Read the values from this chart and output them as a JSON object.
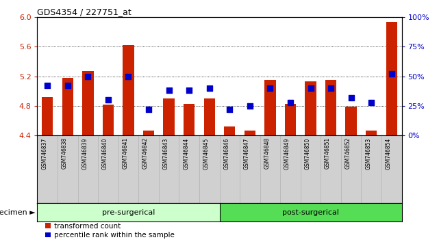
{
  "title": "GDS4354 / 227751_at",
  "samples": [
    "GSM746837",
    "GSM746838",
    "GSM746839",
    "GSM746840",
    "GSM746841",
    "GSM746842",
    "GSM746843",
    "GSM746844",
    "GSM746845",
    "GSM746846",
    "GSM746847",
    "GSM746848",
    "GSM746849",
    "GSM746850",
    "GSM746851",
    "GSM746852",
    "GSM746853",
    "GSM746854"
  ],
  "transformed_count": [
    4.92,
    5.18,
    5.27,
    4.82,
    5.62,
    4.47,
    4.9,
    4.83,
    4.9,
    4.52,
    4.47,
    5.15,
    4.83,
    5.13,
    5.15,
    4.79,
    4.47,
    5.93
  ],
  "percentile_rank": [
    42,
    42,
    50,
    30,
    50,
    22,
    38,
    38,
    40,
    22,
    25,
    40,
    28,
    40,
    40,
    32,
    28,
    52
  ],
  "pre_surgical_count": 9,
  "post_surgical_count": 9,
  "ylim_left": [
    4.4,
    6.0
  ],
  "ylim_right": [
    0,
    100
  ],
  "yticks_left": [
    4.4,
    4.8,
    5.2,
    5.6,
    6.0
  ],
  "yticks_right": [
    0,
    25,
    50,
    75,
    100
  ],
  "bar_color": "#cc2200",
  "dot_color": "#0000cc",
  "pre_color_light": "#ccffcc",
  "post_color": "#55dd55",
  "grid_color": "#000000",
  "tick_color_left": "#cc2200",
  "tick_color_right": "#0000cc",
  "specimen_label": "specimen",
  "pre_label": "pre-surgerical",
  "post_label": "post-surgerical",
  "legend_red": "transformed count",
  "legend_blue": "percentile rank within the sample",
  "bar_width": 0.55,
  "dot_size": 35,
  "baseline": 4.4,
  "xtick_bg": "#d0d0d0"
}
